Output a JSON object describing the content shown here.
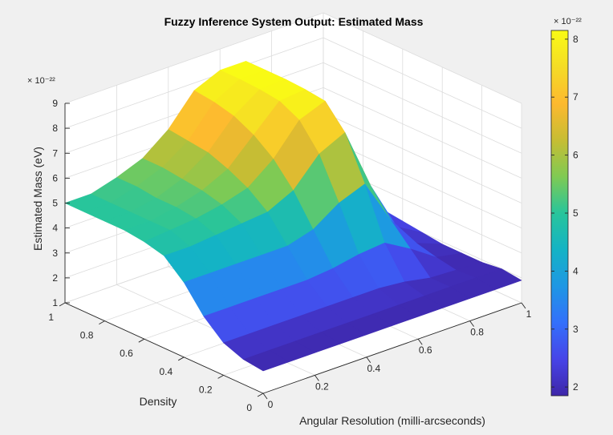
{
  "chart_data": {
    "type": "surface3d",
    "title": "Fuzzy Inference System Output: Estimated Mass",
    "xlabel": "Angular Resolution (milli-arcseconds)",
    "ylabel": "Density",
    "zlabel": "Estimated Mass (eV)",
    "xlim": [
      0,
      1
    ],
    "ylim": [
      0,
      1
    ],
    "zlim": [
      1,
      9
    ],
    "z_exponent": "× 10⁻²²",
    "xticks": [
      "0",
      "0.2",
      "0.4",
      "0.6",
      "0.8",
      "1"
    ],
    "yticks": [
      "0",
      "0.2",
      "0.4",
      "0.6",
      "0.8",
      "1"
    ],
    "zticks": [
      "1",
      "2",
      "3",
      "4",
      "5",
      "6",
      "7",
      "8",
      "9"
    ],
    "grid": true,
    "colormap": "parula",
    "colorbar": {
      "range": [
        1.85,
        8.15
      ],
      "ticks": [
        "2",
        "3",
        "4",
        "5",
        "6",
        "7",
        "8"
      ],
      "exponent": "× 10⁻²²",
      "colors": [
        "#3e26a8",
        "#4744e8",
        "#3370fb",
        "#1e97e4",
        "#14b3c5",
        "#28c59b",
        "#80ca53",
        "#c7bd33",
        "#fdb92f",
        "#f5dc26",
        "#f9fb15"
      ]
    },
    "x": [
      0,
      0.1,
      0.2,
      0.3,
      0.4,
      0.5,
      0.6,
      0.7,
      0.8,
      0.9,
      1
    ],
    "y": [
      0,
      0.1,
      0.2,
      0.3,
      0.4,
      0.5,
      0.6,
      0.7,
      0.8,
      0.9,
      1
    ],
    "z_rows_by_y": [
      [
        1.9,
        1.9,
        1.9,
        1.9,
        1.9,
        1.9,
        1.9,
        1.9,
        1.9,
        1.9,
        1.9
      ],
      [
        2.0,
        2.0,
        2.0,
        2.0,
        2.0,
        2.0,
        2.0,
        2.0,
        2.0,
        2.0,
        2.0
      ],
      [
        2.3,
        2.3,
        2.3,
        2.3,
        2.3,
        2.3,
        2.3,
        2.2,
        2.0,
        1.95,
        1.9
      ],
      [
        3.0,
        3.0,
        3.0,
        3.0,
        3.0,
        3.1,
        3.3,
        3.4,
        2.8,
        2.1,
        1.9
      ],
      [
        4.0,
        4.0,
        4.0,
        4.0,
        4.0,
        4.3,
        5.0,
        5.4,
        3.6,
        2.3,
        1.9
      ],
      [
        4.7,
        4.7,
        4.8,
        4.9,
        5.0,
        5.5,
        6.6,
        7.1,
        4.6,
        2.6,
        2.0
      ],
      [
        4.9,
        5.0,
        5.1,
        5.3,
        5.6,
        6.4,
        7.6,
        8.0,
        5.6,
        3.0,
        2.1
      ],
      [
        5.0,
        5.0,
        5.2,
        5.5,
        6.0,
        7.0,
        8.0,
        8.1,
        6.2,
        3.3,
        2.2
      ],
      [
        5.0,
        5.0,
        5.2,
        5.6,
        6.3,
        7.4,
        8.1,
        8.15,
        6.5,
        3.5,
        2.3
      ],
      [
        5.0,
        5.0,
        5.3,
        5.7,
        6.4,
        7.6,
        8.15,
        8.15,
        6.6,
        3.6,
        2.4
      ],
      [
        5.0,
        5.0,
        5.3,
        5.7,
        6.5,
        7.7,
        8.15,
        8.15,
        6.7,
        3.7,
        2.4
      ]
    ]
  }
}
